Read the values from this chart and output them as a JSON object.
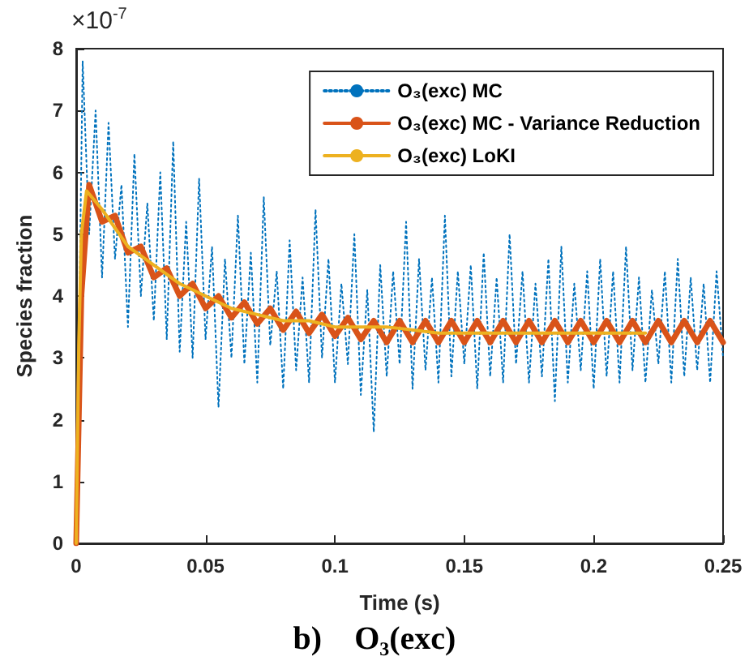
{
  "chart_data": {
    "type": "line",
    "xlabel": "Time (s)",
    "ylabel": "Species fraction",
    "annotations": [
      "×10$^{-7}$",
      "b)    O₃(exc)"
    ],
    "xlim": [
      0,
      0.25
    ],
    "xticks": [
      0,
      0.05,
      0.1,
      0.15,
      0.2,
      0.25
    ],
    "ylim": [
      0,
      8
    ],
    "yticks": [
      0,
      1,
      2,
      3,
      4,
      5,
      6,
      7,
      8
    ],
    "grid": false,
    "legend": "top right",
    "marker": "none",
    "series": [
      {
        "name": "O₃(exc) MC",
        "color": "#0072bd",
        "line_style": "dotted",
        "x": [
          0,
          0.0025,
          0.005,
          0.0075,
          0.01,
          0.0125,
          0.015,
          0.0175,
          0.02,
          0.0225,
          0.025,
          0.0275,
          0.03,
          0.0325,
          0.035,
          0.0375,
          0.04,
          0.0425,
          0.045,
          0.0475,
          0.05,
          0.0525,
          0.055,
          0.0575,
          0.06,
          0.0625,
          0.065,
          0.0675,
          0.07,
          0.0725,
          0.075,
          0.0775,
          0.08,
          0.0825,
          0.085,
          0.0875,
          0.09,
          0.0925,
          0.095,
          0.0975,
          0.1,
          0.1025,
          0.105,
          0.1075,
          0.11,
          0.1125,
          0.115,
          0.1175,
          0.12,
          0.1225,
          0.125,
          0.1275,
          0.13,
          0.1325,
          0.135,
          0.1375,
          0.14,
          0.1425,
          0.145,
          0.1475,
          0.15,
          0.1525,
          0.155,
          0.1575,
          0.16,
          0.1625,
          0.165,
          0.1675,
          0.17,
          0.1725,
          0.175,
          0.1775,
          0.18,
          0.1825,
          0.185,
          0.1875,
          0.19,
          0.1925,
          0.195,
          0.1975,
          0.2,
          0.2025,
          0.205,
          0.2075,
          0.21,
          0.2125,
          0.215,
          0.2175,
          0.22,
          0.2225,
          0.225,
          0.2275,
          0.23,
          0.2325,
          0.235,
          0.2375,
          0.24,
          0.2425,
          0.245,
          0.2475,
          0.25
        ],
        "values": [
          0,
          7.8,
          5.0,
          7.0,
          4.3,
          6.8,
          4.6,
          5.8,
          3.5,
          6.3,
          4.0,
          5.5,
          3.6,
          6.0,
          3.3,
          6.5,
          3.1,
          5.2,
          3.0,
          5.9,
          3.3,
          4.8,
          2.2,
          4.6,
          3.0,
          5.3,
          2.9,
          4.7,
          2.6,
          5.6,
          3.2,
          4.4,
          2.5,
          4.9,
          2.8,
          4.3,
          2.6,
          5.4,
          3.0,
          4.6,
          2.6,
          4.2,
          2.9,
          5.0,
          2.4,
          4.1,
          1.8,
          4.5,
          2.7,
          4.4,
          2.9,
          5.2,
          2.5,
          4.6,
          2.8,
          4.3,
          2.6,
          5.3,
          2.7,
          4.4,
          2.9,
          4.5,
          2.5,
          4.7,
          2.7,
          4.3,
          2.6,
          5.0,
          2.9,
          4.4,
          2.6,
          4.2,
          2.7,
          4.6,
          2.3,
          4.8,
          2.6,
          4.2,
          2.8,
          4.4,
          2.5,
          4.6,
          2.7,
          4.4,
          2.6,
          4.8,
          2.8,
          4.3,
          2.6,
          4.1,
          2.9,
          4.4,
          2.6,
          4.6,
          2.7,
          4.3,
          2.8,
          4.2,
          2.6,
          4.4,
          3.0
        ]
      },
      {
        "name": "O₃(exc) MC - Variance Reduction",
        "color": "#d95319",
        "line_style": "solid",
        "x": [
          0,
          0.002,
          0.005,
          0.01,
          0.015,
          0.02,
          0.025,
          0.03,
          0.035,
          0.04,
          0.045,
          0.05,
          0.055,
          0.06,
          0.065,
          0.07,
          0.075,
          0.08,
          0.085,
          0.09,
          0.095,
          0.1,
          0.105,
          0.11,
          0.115,
          0.12,
          0.125,
          0.13,
          0.135,
          0.14,
          0.145,
          0.15,
          0.155,
          0.16,
          0.165,
          0.17,
          0.175,
          0.18,
          0.185,
          0.19,
          0.195,
          0.2,
          0.205,
          0.21,
          0.215,
          0.22,
          0.225,
          0.23,
          0.235,
          0.24,
          0.245,
          0.25
        ],
        "values": [
          0,
          4.0,
          5.8,
          5.2,
          5.3,
          4.7,
          4.8,
          4.3,
          4.45,
          4.0,
          4.2,
          3.8,
          4.0,
          3.65,
          3.9,
          3.55,
          3.8,
          3.45,
          3.75,
          3.4,
          3.7,
          3.35,
          3.65,
          3.3,
          3.6,
          3.25,
          3.6,
          3.25,
          3.6,
          3.25,
          3.6,
          3.25,
          3.6,
          3.25,
          3.6,
          3.25,
          3.6,
          3.25,
          3.6,
          3.25,
          3.6,
          3.25,
          3.6,
          3.25,
          3.6,
          3.25,
          3.6,
          3.25,
          3.6,
          3.25,
          3.6,
          3.25
        ]
      },
      {
        "name": "O₃(exc) LoKI",
        "color": "#edb120",
        "line_style": "solid",
        "x": [
          0,
          0.001,
          0.002,
          0.004,
          0.01,
          0.02,
          0.03,
          0.04,
          0.05,
          0.06,
          0.07,
          0.08,
          0.09,
          0.1,
          0.12,
          0.14,
          0.16,
          0.18,
          0.2,
          0.22
        ],
        "values": [
          0,
          3.2,
          5.0,
          5.7,
          5.4,
          4.8,
          4.5,
          4.2,
          4.0,
          3.8,
          3.7,
          3.6,
          3.6,
          3.5,
          3.5,
          3.4,
          3.4,
          3.4,
          3.4,
          3.4
        ]
      }
    ]
  }
}
